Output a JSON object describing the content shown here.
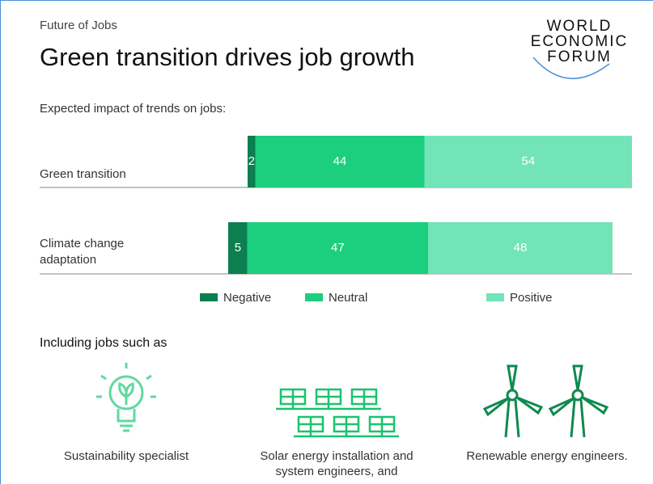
{
  "header": {
    "kicker": "Future of Jobs",
    "title": "Green transition drives job growth",
    "logo": [
      "WORLD",
      "ECONOMIC",
      "FORUM"
    ]
  },
  "chart_data": {
    "type": "bar",
    "orientation": "horizontal",
    "stacked": true,
    "subtitle": "Expected impact of trends on jobs:",
    "categories": [
      "Green transition",
      "Climate change adaptation"
    ],
    "series": [
      {
        "name": "Negative",
        "color": "#0b7f4f",
        "values": [
          2,
          5
        ]
      },
      {
        "name": "Neutral",
        "color": "#1bcf7e",
        "values": [
          44,
          47
        ]
      },
      {
        "name": "Positive",
        "color": "#72e4b7",
        "values": [
          54,
          48
        ]
      }
    ]
  },
  "jobs": {
    "title": "Including jobs such as",
    "items": [
      "Sustainability specialist",
      "Solar energy installation and system engineers, and",
      "Renewable energy engineers."
    ]
  }
}
